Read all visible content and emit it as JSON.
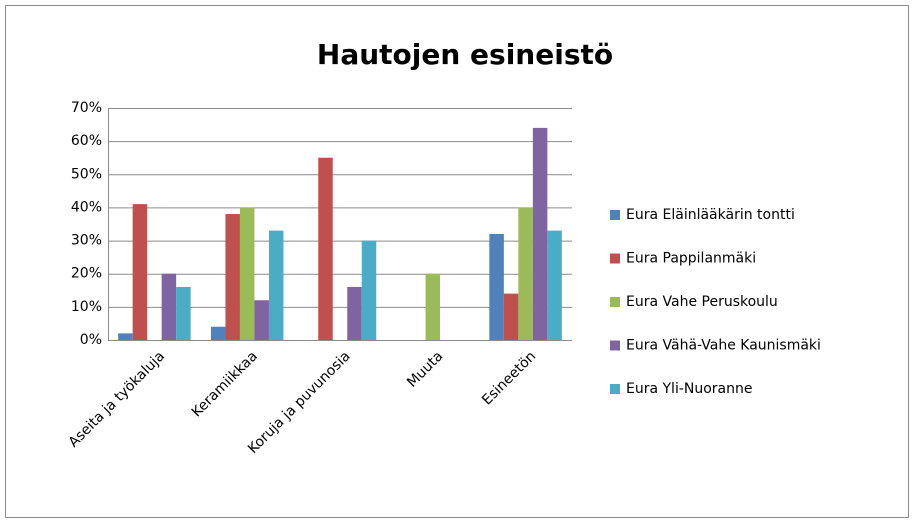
{
  "chart_data": {
    "type": "bar",
    "title": "Hautojen esineistö",
    "categories": [
      "Aseita ja työkaluja",
      "Keramiikkaa",
      "Koruja ja puvunosia",
      "Muuta",
      "Esineetön"
    ],
    "series": [
      {
        "name": "Eura Eläinlääkärin tontti",
        "color": "#4f81bd",
        "values": [
          2,
          4,
          0,
          0,
          32
        ]
      },
      {
        "name": "Eura Pappilanmäki",
        "color": "#c0504d",
        "values": [
          41,
          38,
          55,
          0,
          14
        ]
      },
      {
        "name": "Eura Vahe Peruskoulu",
        "color": "#9bbb59",
        "values": [
          0,
          40,
          0,
          20,
          40
        ]
      },
      {
        "name": "Eura Vähä-Vahe Kaunismäki",
        "color": "#8064a2",
        "values": [
          20,
          12,
          16,
          0,
          64
        ]
      },
      {
        "name": "Eura Yli-Nuoranne",
        "color": "#4bacc6",
        "values": [
          16,
          33,
          30,
          0,
          33
        ]
      }
    ],
    "ylim": [
      0,
      70
    ],
    "yticks": [
      {
        "value": 0,
        "label": "0%"
      },
      {
        "value": 10,
        "label": "10%"
      },
      {
        "value": 20,
        "label": "20%"
      },
      {
        "value": 30,
        "label": "30%"
      },
      {
        "value": 40,
        "label": "40%"
      },
      {
        "value": 50,
        "label": "50%"
      },
      {
        "value": 60,
        "label": "60%"
      },
      {
        "value": 70,
        "label": "70%"
      }
    ],
    "grid": true,
    "legend": "right"
  }
}
